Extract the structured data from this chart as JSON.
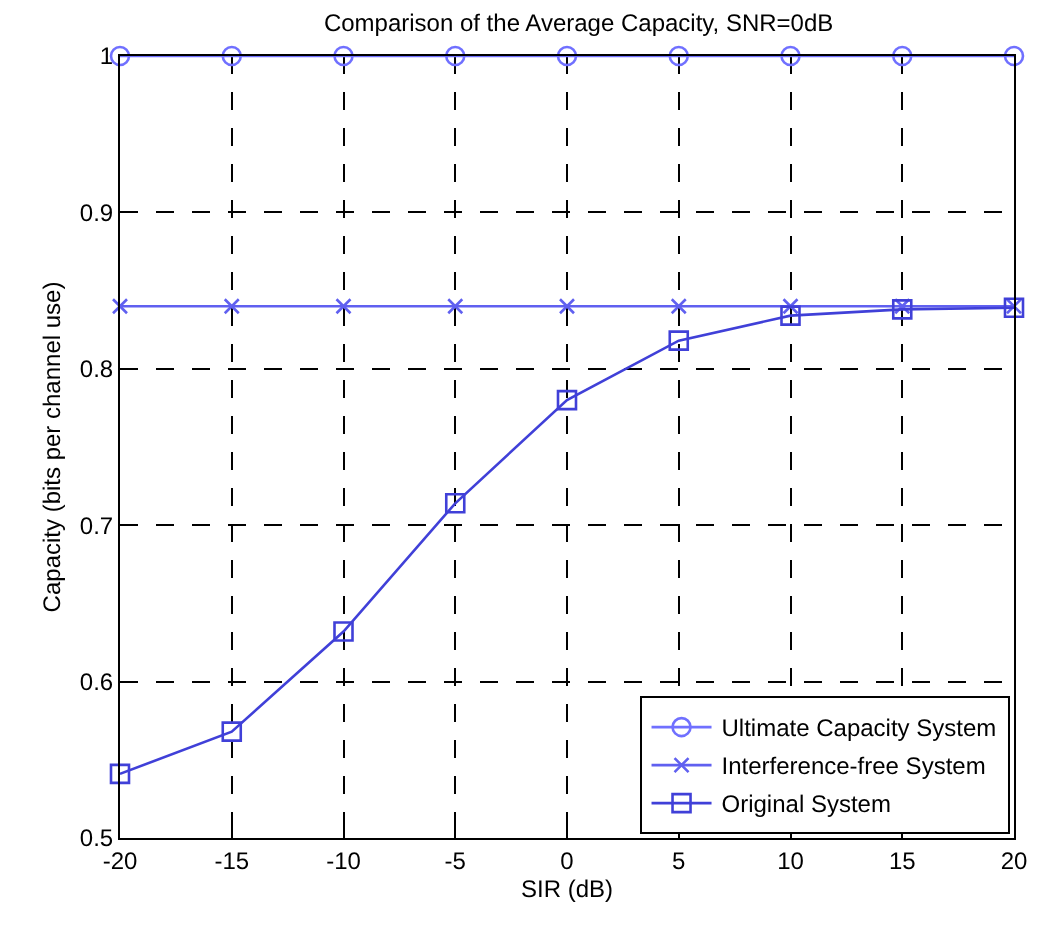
{
  "chart_data": {
    "type": "line",
    "title": "Comparison of the Average Capacity, SNR=0dB",
    "xlabel": "SIR (dB)",
    "ylabel": "Capacity (bits per channel use)",
    "x": [
      -20,
      -15,
      -10,
      -5,
      0,
      5,
      10,
      15,
      20
    ],
    "series": [
      {
        "name": "Ultimate Capacity System",
        "color": "#7070ff",
        "marker": "circle",
        "values": [
          1,
          1,
          1,
          1,
          1,
          1,
          1,
          1,
          1
        ]
      },
      {
        "name": "Interference-free System",
        "color": "#6060f0",
        "marker": "cross",
        "values": [
          0.84,
          0.84,
          0.84,
          0.84,
          0.84,
          0.84,
          0.84,
          0.84,
          0.84
        ]
      },
      {
        "name": "Original System",
        "color": "#4040d8",
        "marker": "square",
        "values": [
          0.541,
          0.568,
          0.632,
          0.714,
          0.78,
          0.818,
          0.834,
          0.838,
          0.839
        ]
      }
    ],
    "xlim": [
      -20,
      20
    ],
    "xticks": [
      -20,
      -15,
      -10,
      -5,
      0,
      5,
      10,
      15,
      20
    ],
    "ylim": [
      0.5,
      1
    ],
    "yticks": [
      0.5,
      0.6,
      0.7,
      0.8,
      0.9,
      1
    ],
    "grid": true,
    "legend": "bottom right",
    "line_style": "solid"
  }
}
